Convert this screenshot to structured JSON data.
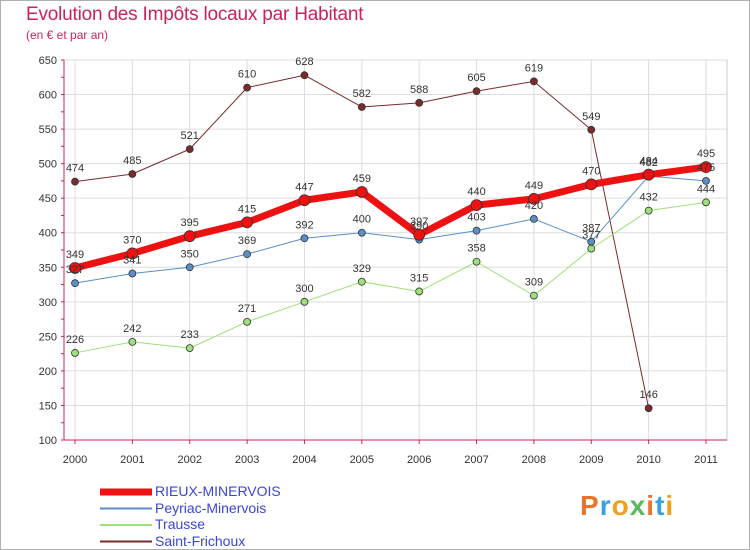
{
  "title": "Evolution des Impôts locaux par Habitant",
  "subtitle": "(en € et par an)",
  "brand": "Proxiti",
  "chart_data": {
    "type": "line",
    "x": [
      "2000",
      "2001",
      "2002",
      "2003",
      "2004",
      "2005",
      "2006",
      "2007",
      "2008",
      "2009",
      "2010",
      "2011"
    ],
    "ylim": [
      100,
      650
    ],
    "yticks": [
      100,
      150,
      200,
      250,
      300,
      350,
      400,
      450,
      500,
      550,
      600,
      650
    ],
    "grid": true,
    "legend_position": "bottom-left",
    "series": [
      {
        "name": "Saint-Frichoux",
        "color": "#7a2b2b",
        "width": 1,
        "values": [
          474,
          485,
          521,
          610,
          628,
          582,
          588,
          605,
          619,
          549,
          146,
          null
        ],
        "labels": [
          "474",
          "485",
          "521",
          "610",
          "628",
          "582",
          "588",
          "605",
          "619",
          "549",
          "146",
          ""
        ]
      },
      {
        "name": "Trausse",
        "color": "#9ee07a",
        "width": 1,
        "values": [
          226,
          242,
          233,
          271,
          300,
          329,
          315,
          358,
          309,
          377,
          432,
          444
        ],
        "labels": [
          "226",
          "242",
          "233",
          "271",
          "300",
          "329",
          "315",
          "358",
          "309",
          "377",
          "432",
          "444"
        ]
      },
      {
        "name": "Peyriac-Minervois",
        "color": "#5a8fc8",
        "width": 1,
        "values": [
          327,
          341,
          350,
          369,
          392,
          400,
          390,
          403,
          420,
          387,
          482,
          475
        ],
        "labels": [
          "327",
          "341",
          "350",
          "369",
          "392",
          "400",
          "390",
          "403",
          "420",
          "387",
          "482",
          "475"
        ]
      },
      {
        "name": "RIEUX-MINERVOIS",
        "color": "#ee1111",
        "width": 7,
        "values": [
          349,
          370,
          395,
          415,
          447,
          459,
          397,
          440,
          449,
          470,
          484,
          495
        ],
        "labels": [
          "349",
          "370",
          "395",
          "415",
          "447",
          "459",
          "397",
          "440",
          "449",
          "470",
          "484",
          "495"
        ]
      }
    ],
    "legend_order": [
      "RIEUX-MINERVOIS",
      "Peyriac-Minervois",
      "Trausse",
      "Saint-Frichoux"
    ]
  }
}
